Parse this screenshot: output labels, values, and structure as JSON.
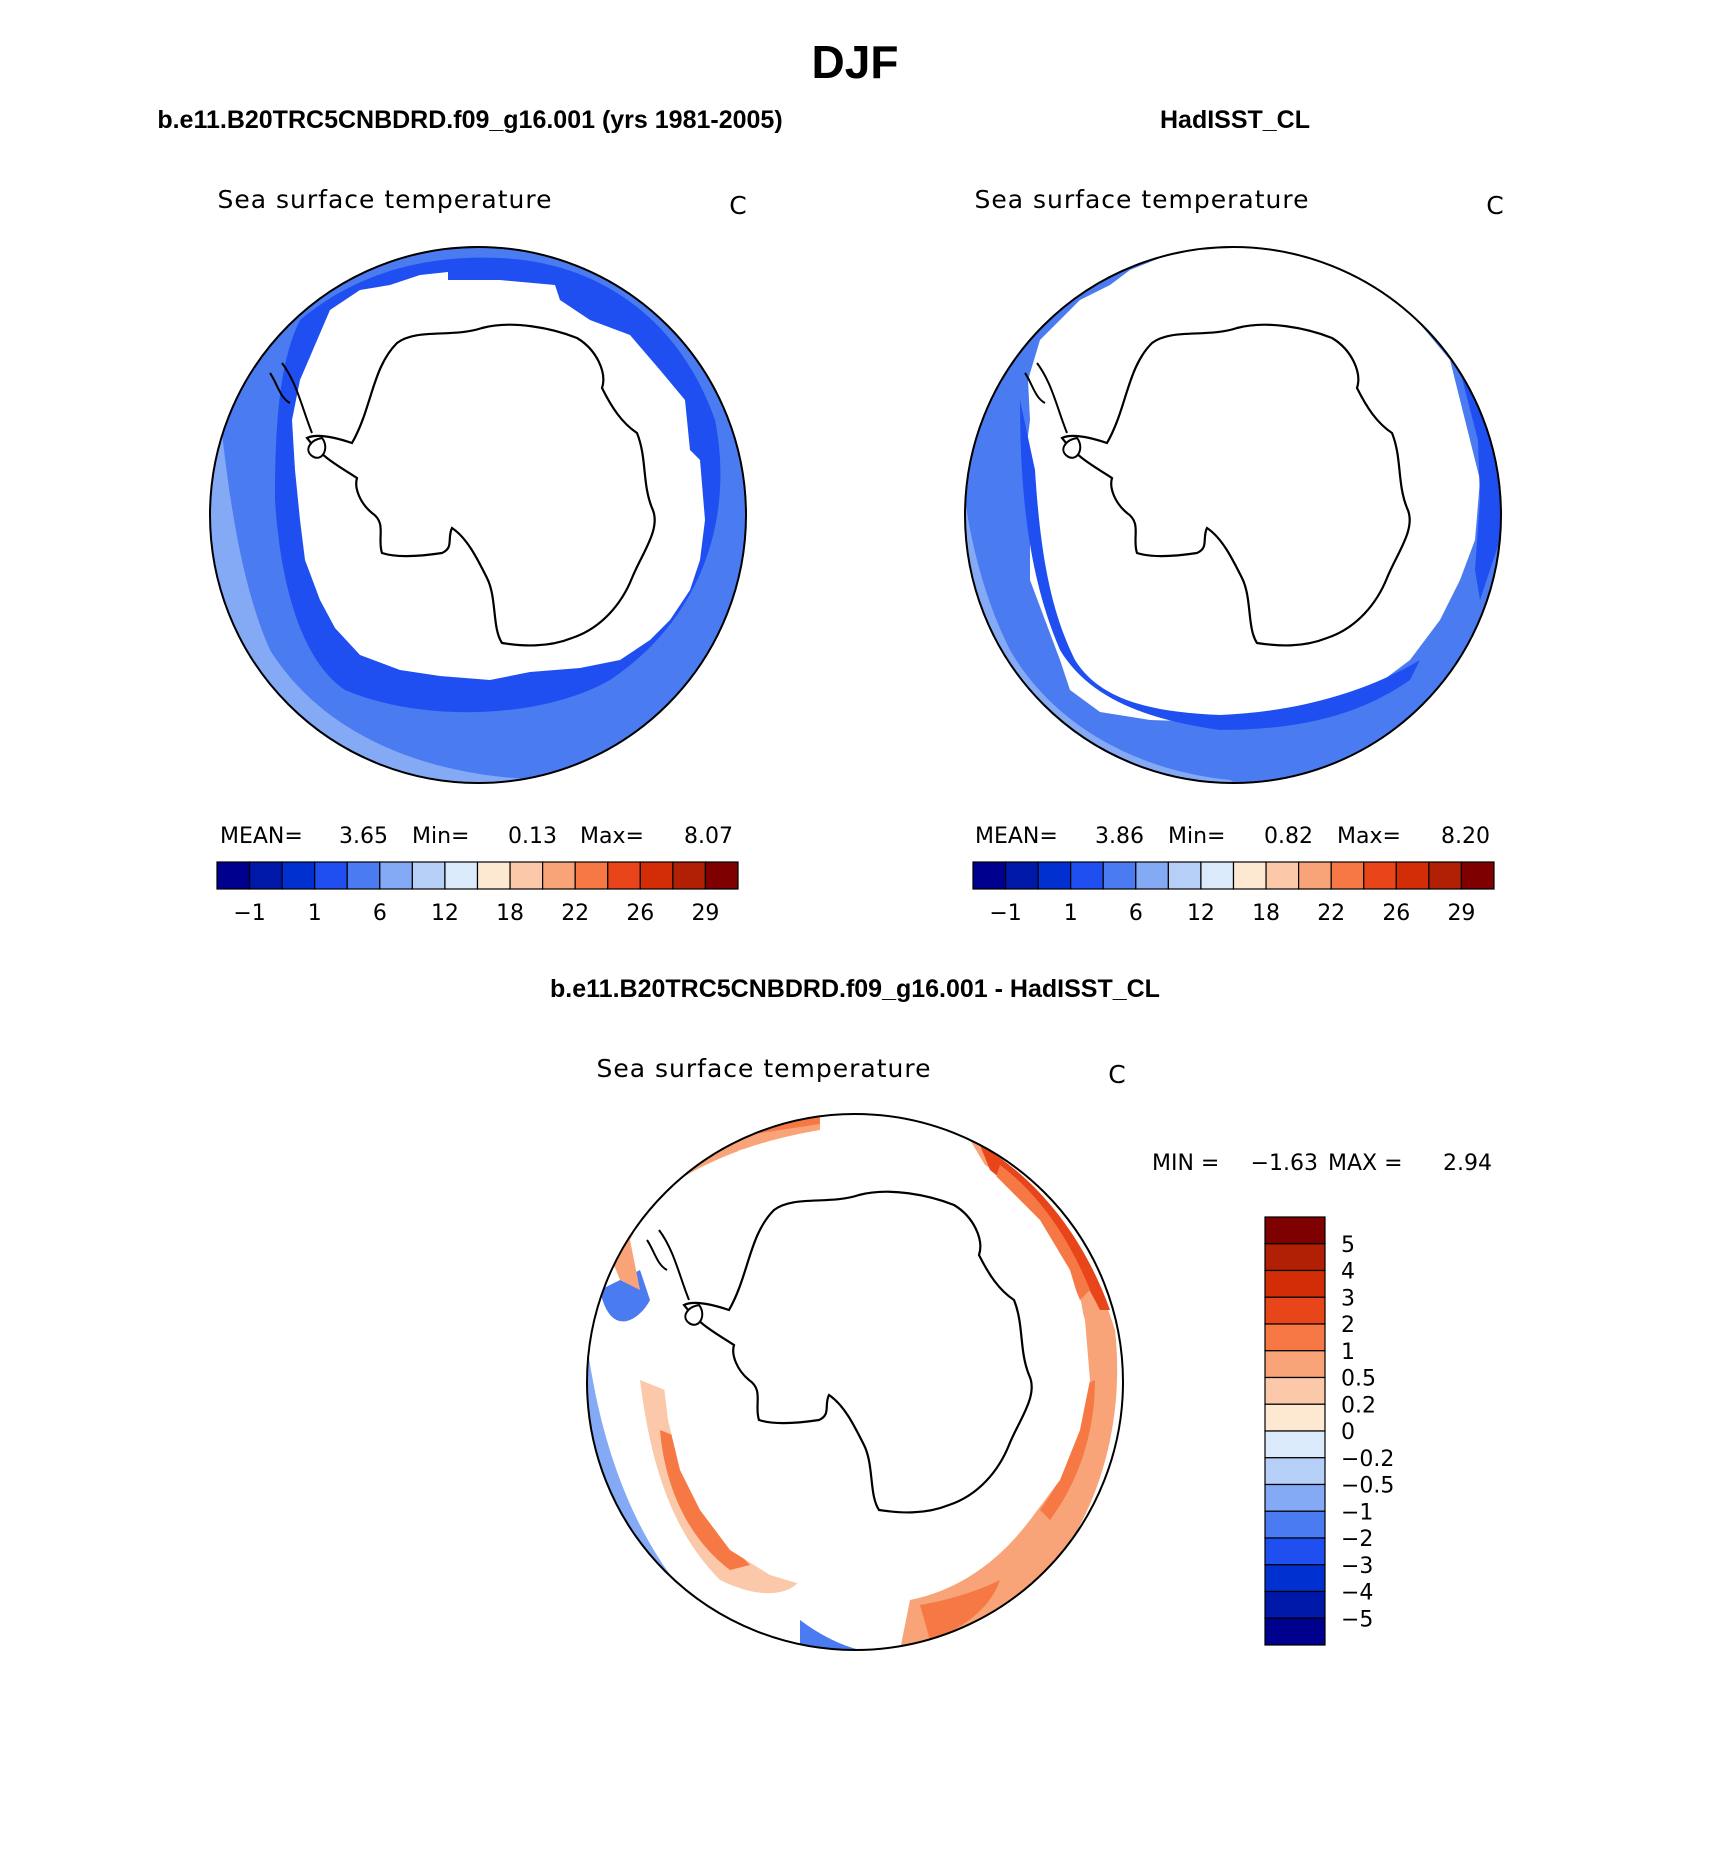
{
  "figure": {
    "title": "DJF"
  },
  "panels": [
    {
      "id": "model",
      "heading": "b.e11.B20TRC5CNBDRD.f09_g16.001 (yrs 1981-2005)",
      "variable": "Sea surface temperature",
      "units": "C",
      "stats": {
        "mean_label": "MEAN=",
        "mean": "3.65",
        "min_label": "Min=",
        "min": "0.13",
        "max_label": "Max=",
        "max": "8.07"
      },
      "colorbar": {
        "colors": [
          "#00008f",
          "#0018a8",
          "#0030d0",
          "#1f4ff0",
          "#4b7bf0",
          "#84a9f5",
          "#b6cff7",
          "#dbeafb",
          "#fde8d2",
          "#fbc9aa",
          "#f8a478",
          "#f67845",
          "#e8451b",
          "#d22d07",
          "#b11f04",
          "#7f0000"
        ],
        "tick_labels": [
          "−1",
          "1",
          "6",
          "12",
          "18",
          "22",
          "26",
          "29"
        ]
      }
    },
    {
      "id": "obs",
      "heading": "HadISST_CL",
      "variable": "Sea surface temperature",
      "units": "C",
      "stats": {
        "mean_label": "MEAN=",
        "mean": "3.86",
        "min_label": "Min=",
        "min": "0.82",
        "max_label": "Max=",
        "max": "8.20"
      },
      "colorbar": {
        "colors": [
          "#00008f",
          "#0018a8",
          "#0030d0",
          "#1f4ff0",
          "#4b7bf0",
          "#84a9f5",
          "#b6cff7",
          "#dbeafb",
          "#fde8d2",
          "#fbc9aa",
          "#f8a478",
          "#f67845",
          "#e8451b",
          "#d22d07",
          "#b11f04",
          "#7f0000"
        ],
        "tick_labels": [
          "−1",
          "1",
          "6",
          "12",
          "18",
          "22",
          "26",
          "29"
        ]
      }
    },
    {
      "id": "diff",
      "heading": "b.e11.B20TRC5CNBDRD.f09_g16.001 - HadISST_CL",
      "variable": "Sea surface temperature",
      "units": "C",
      "stats": {
        "min_label": "MIN =",
        "min": "−1.63",
        "max_label": "MAX =",
        "max": "2.94"
      },
      "colorbar": {
        "colors_top_to_bottom": [
          "#7f0000",
          "#b11f04",
          "#d22d07",
          "#e8451b",
          "#f67845",
          "#f8a478",
          "#fbc9aa",
          "#fde8d2",
          "#dbeafb",
          "#b6cff7",
          "#84a9f5",
          "#4b7bf0",
          "#1f4ff0",
          "#0030d0",
          "#0018a8",
          "#00008f"
        ],
        "tick_labels_top_to_bottom": [
          "5",
          "4",
          "3",
          "2",
          "1",
          "0.5",
          "0.2",
          "0",
          "−0.2",
          "−0.5",
          "−1",
          "−2",
          "−3",
          "−4",
          "−5"
        ]
      }
    }
  ]
}
